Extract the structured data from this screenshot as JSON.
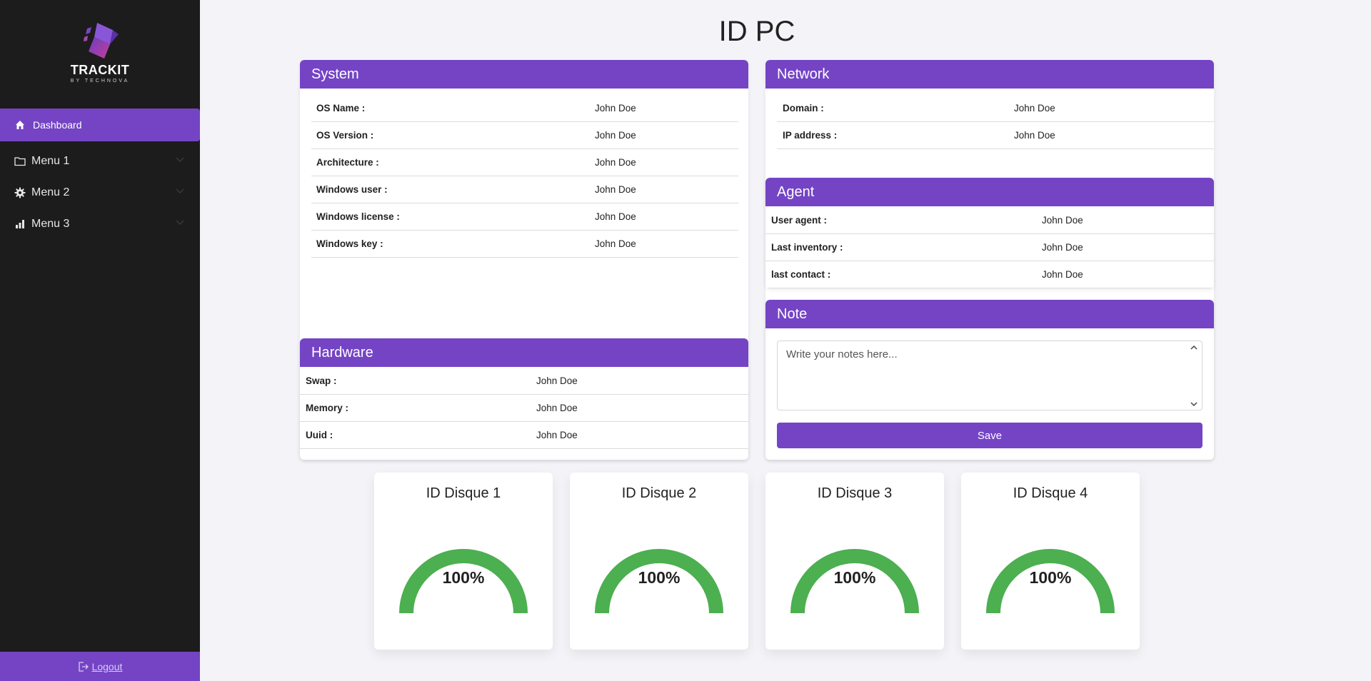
{
  "app": {
    "brand": "TRACKIT",
    "brand_sub": "BY TECHNOVA",
    "accent": "#7444c5"
  },
  "sidebar": {
    "active_item": {
      "label": "Dashboard",
      "icon": "home-icon"
    },
    "items": [
      {
        "label": "Menu 1",
        "icon": "folder-icon"
      },
      {
        "label": "Menu 2",
        "icon": "gear-icon"
      },
      {
        "label": "Menu 3",
        "icon": "bar-chart-icon"
      }
    ],
    "logout_label": "Logout"
  },
  "page": {
    "title": "ID PC"
  },
  "system": {
    "title": "System",
    "rows": [
      {
        "k": "OS Name :",
        "v": "John Doe"
      },
      {
        "k": "OS Version :",
        "v": "John Doe"
      },
      {
        "k": "Architecture :",
        "v": "John Doe"
      },
      {
        "k": "Windows user :",
        "v": "John Doe"
      },
      {
        "k": "Windows license :",
        "v": "John Doe"
      },
      {
        "k": "Windows key :",
        "v": "John Doe"
      }
    ]
  },
  "hardware": {
    "title": "Hardware",
    "rows": [
      {
        "k": "Swap :",
        "v": "John Doe"
      },
      {
        "k": "Memory :",
        "v": "John Doe"
      },
      {
        "k": "Uuid :",
        "v": "John Doe"
      }
    ]
  },
  "network": {
    "title": "Network",
    "rows": [
      {
        "k": "Domain :",
        "v": "John Doe"
      },
      {
        "k": "IP address :",
        "v": "John Doe"
      }
    ]
  },
  "agent": {
    "title": "Agent",
    "rows": [
      {
        "k": "User agent :",
        "v": "John Doe"
      },
      {
        "k": "Last inventory :",
        "v": "John Doe"
      },
      {
        "k": "last contact :",
        "v": "John Doe"
      }
    ]
  },
  "note": {
    "title": "Note",
    "placeholder": "Write your notes here...",
    "value": "",
    "save_label": "Save"
  },
  "disks": [
    {
      "title": "ID Disque 1",
      "percent_label": "100%",
      "fill": 1.0,
      "color": "#4caf50"
    },
    {
      "title": "ID Disque 2",
      "percent_label": "100%",
      "fill": 1.0,
      "color": "#4caf50"
    },
    {
      "title": "ID Disque 3",
      "percent_label": "100%",
      "fill": 1.0,
      "color": "#4caf50"
    },
    {
      "title": "ID Disque 4",
      "percent_label": "100%",
      "fill": 1.0,
      "color": "#4caf50"
    }
  ]
}
